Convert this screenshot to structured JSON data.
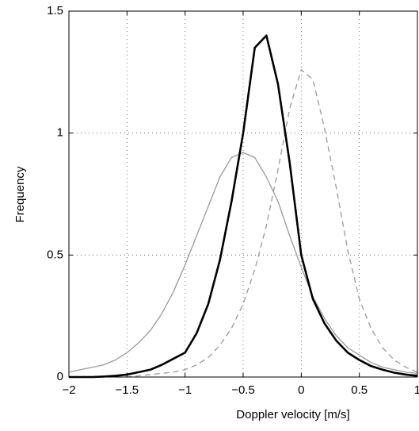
{
  "chart_data": {
    "type": "line",
    "xlabel": "Doppler velocity [m/s]",
    "ylabel": "Frequency",
    "x": [
      -2,
      -1.9,
      -1.8,
      -1.7,
      -1.6,
      -1.5,
      -1.4,
      -1.3,
      -1.2,
      -1.1,
      -1.0,
      -0.9,
      -0.8,
      -0.7,
      -0.6,
      -0.5,
      -0.4,
      -0.3,
      -0.2,
      -0.1,
      0,
      0.1,
      0.2,
      0.3,
      0.4,
      0.5,
      0.6,
      0.7,
      0.8,
      0.9,
      1.0
    ],
    "series": [
      {
        "color": "#999999",
        "dash": false,
        "width": 1.3,
        "values": [
          0.02,
          0.03,
          0.04,
          0.05,
          0.07,
          0.1,
          0.14,
          0.19,
          0.26,
          0.35,
          0.46,
          0.58,
          0.7,
          0.82,
          0.9,
          0.92,
          0.9,
          0.82,
          0.72,
          0.58,
          0.45,
          0.33,
          0.24,
          0.17,
          0.12,
          0.09,
          0.06,
          0.04,
          0.03,
          0.02,
          0.015
        ]
      },
      {
        "color": "#999999",
        "dash": true,
        "width": 1.3,
        "values": [
          0,
          0,
          0,
          0,
          0,
          0,
          0.005,
          0.01,
          0.015,
          0.02,
          0.03,
          0.05,
          0.08,
          0.13,
          0.2,
          0.3,
          0.44,
          0.62,
          0.85,
          1.1,
          1.26,
          1.22,
          1.02,
          0.78,
          0.52,
          0.32,
          0.2,
          0.12,
          0.07,
          0.04,
          0.02
        ]
      },
      {
        "color": "#000000",
        "dash": false,
        "width": 2.6,
        "values": [
          0,
          0,
          0,
          0.002,
          0.005,
          0.01,
          0.02,
          0.03,
          0.05,
          0.075,
          0.1,
          0.18,
          0.3,
          0.48,
          0.72,
          1.0,
          1.35,
          1.4,
          1.2,
          0.88,
          0.5,
          0.32,
          0.22,
          0.15,
          0.1,
          0.07,
          0.045,
          0.03,
          0.018,
          0.01,
          0.005
        ]
      }
    ],
    "xlim": [
      -2,
      1
    ],
    "xticks": [
      {
        "value": -2,
        "label": "−2"
      },
      {
        "value": -1.5,
        "label": "−1.5"
      },
      {
        "value": -1,
        "label": "−1"
      },
      {
        "value": -0.5,
        "label": "−0.5"
      },
      0,
      0.5,
      1
    ],
    "ylim": [
      0,
      1.5
    ],
    "yticks": [
      0,
      0.5,
      1,
      1.5
    ],
    "grid": true
  }
}
